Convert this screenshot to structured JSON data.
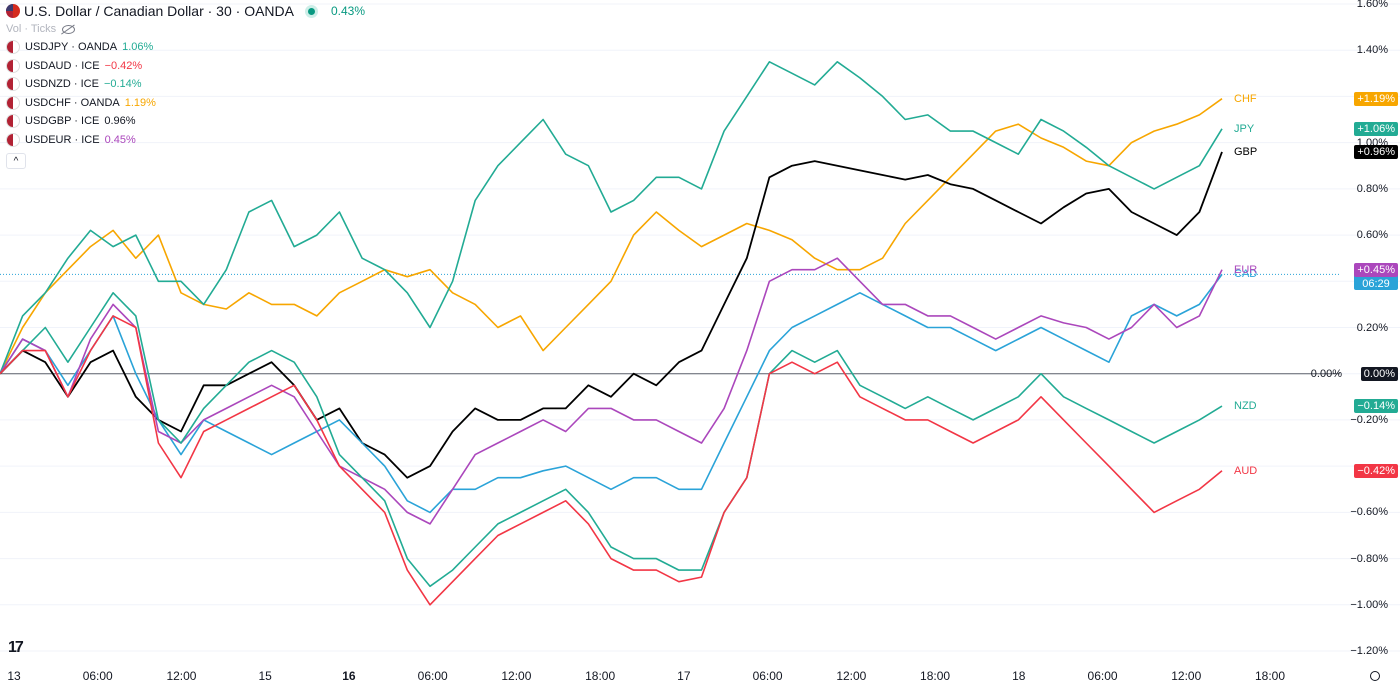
{
  "header": {
    "title": "U.S. Dollar / Canadian Dollar · 30 · OANDA",
    "change": "0.43%",
    "vol_label": "Vol · Ticks",
    "symbols": [
      {
        "name": "USDJPY · OANDA",
        "value": "1.06%",
        "color": "#22ab94"
      },
      {
        "name": "USDAUD · ICE",
        "value": "−0.42%",
        "color": "#f23645"
      },
      {
        "name": "USDNZD · ICE",
        "value": "−0.14%",
        "color": "#22ab94"
      },
      {
        "name": "USDCHF · OANDA",
        "value": "1.19%",
        "color": "#f7a600"
      },
      {
        "name": "USDGBP · ICE",
        "value": "0.96%",
        "color": "#131722"
      },
      {
        "name": "USDEUR · ICE",
        "value": "0.45%",
        "color": "#ab47bc"
      }
    ],
    "collapse_icon": "chevron-up-icon"
  },
  "chart_data": {
    "type": "line",
    "y_unit": "%",
    "ylim": [
      -1.2,
      1.6
    ],
    "y_ticks": [
      "1.60%",
      "1.40%",
      "1.00%",
      "0.80%",
      "0.60%",
      "0.20%",
      "−0.20%",
      "−0.60%",
      "−0.80%",
      "−1.00%",
      "−1.20%"
    ],
    "y_tick_values": [
      1.6,
      1.4,
      1.0,
      0.8,
      0.6,
      0.2,
      -0.2,
      -0.6,
      -0.8,
      -1.0,
      -1.2
    ],
    "x_labels": [
      "13",
      "06:00",
      "12:00",
      "15",
      "16",
      "06:00",
      "12:00",
      "18:00",
      "17",
      "06:00",
      "12:00",
      "18:00",
      "18",
      "06:00",
      "12:00",
      "18:00"
    ],
    "x_bold": [
      "16"
    ],
    "baseline": {
      "value": 0.0,
      "label": "0.00%",
      "badge": "0.00%",
      "color": "#131722"
    },
    "series": [
      {
        "name": "CHF",
        "badge": "+1.19%",
        "color": "#f7a600",
        "values": [
          0,
          0.2,
          0.35,
          0.45,
          0.55,
          0.62,
          0.5,
          0.6,
          0.35,
          0.3,
          0.28,
          0.35,
          0.3,
          0.3,
          0.25,
          0.35,
          0.4,
          0.45,
          0.42,
          0.45,
          0.35,
          0.3,
          0.2,
          0.25,
          0.1,
          0.2,
          0.3,
          0.4,
          0.6,
          0.7,
          0.62,
          0.55,
          0.6,
          0.65,
          0.62,
          0.58,
          0.5,
          0.45,
          0.45,
          0.5,
          0.65,
          0.75,
          0.85,
          0.95,
          1.05,
          1.08,
          1.02,
          0.98,
          0.92,
          0.9,
          1.0,
          1.05,
          1.08,
          1.12,
          1.19
        ]
      },
      {
        "name": "JPY",
        "badge": "+1.06%",
        "color": "#22ab94",
        "values": [
          0,
          0.25,
          0.35,
          0.5,
          0.62,
          0.55,
          0.6,
          0.4,
          0.4,
          0.3,
          0.45,
          0.7,
          0.75,
          0.55,
          0.6,
          0.7,
          0.5,
          0.45,
          0.35,
          0.2,
          0.4,
          0.75,
          0.9,
          1.0,
          1.1,
          0.95,
          0.9,
          0.7,
          0.75,
          0.85,
          0.85,
          0.8,
          1.05,
          1.2,
          1.35,
          1.3,
          1.25,
          1.35,
          1.28,
          1.2,
          1.1,
          1.12,
          1.05,
          1.05,
          1.0,
          0.95,
          1.1,
          1.05,
          0.98,
          0.9,
          0.85,
          0.8,
          0.85,
          0.9,
          1.06
        ]
      },
      {
        "name": "GBP",
        "badge": "+0.96%",
        "color": "#000000",
        "values": [
          0,
          0.1,
          0.05,
          -0.1,
          0.05,
          0.1,
          -0.1,
          -0.2,
          -0.25,
          -0.05,
          -0.05,
          0.0,
          0.05,
          -0.05,
          -0.2,
          -0.15,
          -0.3,
          -0.35,
          -0.45,
          -0.4,
          -0.25,
          -0.15,
          -0.2,
          -0.2,
          -0.15,
          -0.15,
          -0.05,
          -0.1,
          0.0,
          -0.05,
          0.05,
          0.1,
          0.3,
          0.5,
          0.85,
          0.9,
          0.92,
          0.9,
          0.88,
          0.86,
          0.84,
          0.86,
          0.82,
          0.8,
          0.75,
          0.7,
          0.65,
          0.72,
          0.78,
          0.8,
          0.7,
          0.65,
          0.6,
          0.7,
          0.96
        ]
      },
      {
        "name": "CAD",
        "badge": "+0.43%",
        "countdown": "06:29",
        "color": "#2aa3d8",
        "values": [
          0,
          0.15,
          0.1,
          -0.05,
          0.1,
          0.25,
          0.0,
          -0.2,
          -0.35,
          -0.2,
          -0.25,
          -0.3,
          -0.35,
          -0.3,
          -0.25,
          -0.2,
          -0.3,
          -0.4,
          -0.55,
          -0.6,
          -0.5,
          -0.5,
          -0.45,
          -0.45,
          -0.42,
          -0.4,
          -0.45,
          -0.5,
          -0.45,
          -0.45,
          -0.5,
          -0.5,
          -0.3,
          -0.1,
          0.1,
          0.2,
          0.25,
          0.3,
          0.35,
          0.3,
          0.25,
          0.2,
          0.2,
          0.15,
          0.1,
          0.15,
          0.2,
          0.15,
          0.1,
          0.05,
          0.25,
          0.3,
          0.25,
          0.3,
          0.43
        ]
      },
      {
        "name": "EUR",
        "badge": "+0.45%",
        "color": "#ab47bc",
        "values": [
          0,
          0.15,
          0.1,
          -0.1,
          0.15,
          0.3,
          0.2,
          -0.25,
          -0.3,
          -0.2,
          -0.15,
          -0.1,
          -0.05,
          -0.1,
          -0.25,
          -0.4,
          -0.45,
          -0.5,
          -0.6,
          -0.65,
          -0.5,
          -0.35,
          -0.3,
          -0.25,
          -0.2,
          -0.25,
          -0.15,
          -0.15,
          -0.2,
          -0.2,
          -0.25,
          -0.3,
          -0.15,
          0.1,
          0.4,
          0.45,
          0.45,
          0.5,
          0.4,
          0.3,
          0.3,
          0.25,
          0.25,
          0.2,
          0.15,
          0.2,
          0.25,
          0.22,
          0.2,
          0.15,
          0.2,
          0.3,
          0.2,
          0.25,
          0.45
        ]
      },
      {
        "name": "NZD",
        "badge": "−0.14%",
        "color": "#22ab94",
        "values": [
          0,
          0.1,
          0.2,
          0.05,
          0.2,
          0.35,
          0.25,
          -0.2,
          -0.3,
          -0.15,
          -0.05,
          0.05,
          0.1,
          0.05,
          -0.1,
          -0.35,
          -0.45,
          -0.55,
          -0.8,
          -0.92,
          -0.85,
          -0.75,
          -0.65,
          -0.6,
          -0.55,
          -0.5,
          -0.6,
          -0.75,
          -0.8,
          -0.8,
          -0.85,
          -0.85,
          -0.6,
          -0.45,
          0.0,
          0.1,
          0.05,
          0.1,
          -0.05,
          -0.1,
          -0.15,
          -0.1,
          -0.15,
          -0.2,
          -0.15,
          -0.1,
          0.0,
          -0.1,
          -0.15,
          -0.2,
          -0.25,
          -0.3,
          -0.25,
          -0.2,
          -0.14
        ]
      },
      {
        "name": "AUD",
        "badge": "−0.42%",
        "color": "#f23645",
        "values": [
          0,
          0.1,
          0.1,
          -0.1,
          0.1,
          0.25,
          0.2,
          -0.3,
          -0.45,
          -0.25,
          -0.2,
          -0.15,
          -0.1,
          -0.05,
          -0.2,
          -0.4,
          -0.5,
          -0.6,
          -0.85,
          -1.0,
          -0.9,
          -0.8,
          -0.7,
          -0.65,
          -0.6,
          -0.55,
          -0.65,
          -0.8,
          -0.85,
          -0.85,
          -0.9,
          -0.88,
          -0.6,
          -0.45,
          0.0,
          0.05,
          0.0,
          0.05,
          -0.1,
          -0.15,
          -0.2,
          -0.2,
          -0.25,
          -0.3,
          -0.25,
          -0.2,
          -0.1,
          -0.2,
          -0.3,
          -0.4,
          -0.5,
          -0.6,
          -0.55,
          -0.5,
          -0.42
        ]
      }
    ]
  }
}
